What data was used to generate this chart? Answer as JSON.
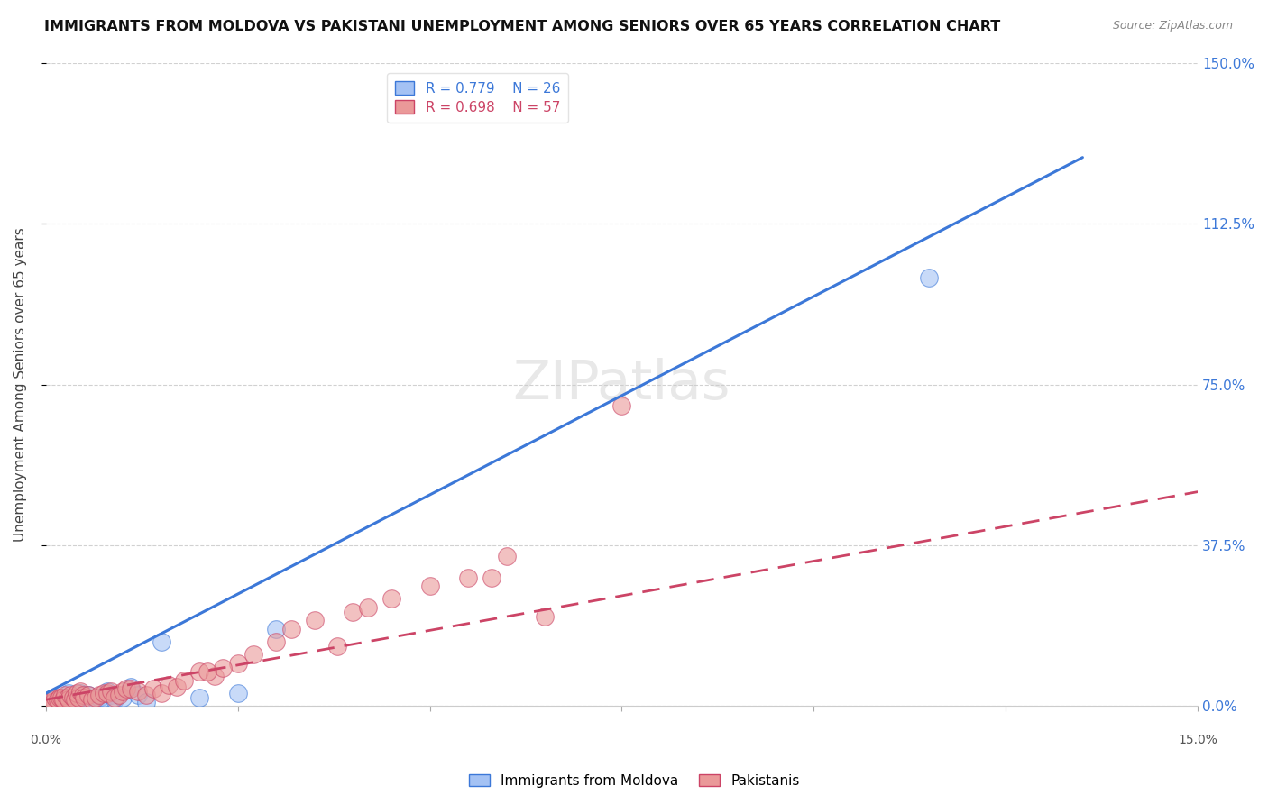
{
  "title": "IMMIGRANTS FROM MOLDOVA VS PAKISTANI UNEMPLOYMENT AMONG SENIORS OVER 65 YEARS CORRELATION CHART",
  "source": "Source: ZipAtlas.com",
  "ylabel": "Unemployment Among Seniors over 65 years",
  "ytick_vals": [
    0.0,
    37.5,
    75.0,
    112.5,
    150.0
  ],
  "xlim": [
    0.0,
    15.0
  ],
  "ylim": [
    0.0,
    150.0
  ],
  "legend_R1": "R = 0.779",
  "legend_N1": "N = 26",
  "legend_R2": "R = 0.698",
  "legend_N2": "N = 57",
  "color_moldova": "#a4c2f4",
  "color_pakistan": "#ea9999",
  "color_line_moldova": "#3c78d8",
  "color_line_pakistan": "#cc4466",
  "moldova_scatter_x": [
    0.1,
    0.15,
    0.2,
    0.25,
    0.3,
    0.35,
    0.4,
    0.45,
    0.5,
    0.55,
    0.6,
    0.65,
    0.7,
    0.75,
    0.8,
    0.85,
    0.9,
    1.0,
    1.1,
    1.2,
    1.3,
    1.5,
    2.0,
    2.5,
    3.0,
    11.5
  ],
  "moldova_scatter_y": [
    1.5,
    1.0,
    2.0,
    2.0,
    3.0,
    1.5,
    1.5,
    3.0,
    2.5,
    2.5,
    1.0,
    1.5,
    2.0,
    2.0,
    3.5,
    2.5,
    1.5,
    2.0,
    4.5,
    2.5,
    1.0,
    15.0,
    2.0,
    3.0,
    18.0,
    100.0
  ],
  "pakistan_scatter_x": [
    0.05,
    0.08,
    0.1,
    0.12,
    0.15,
    0.18,
    0.2,
    0.22,
    0.25,
    0.28,
    0.3,
    0.32,
    0.35,
    0.38,
    0.4,
    0.42,
    0.45,
    0.48,
    0.5,
    0.55,
    0.6,
    0.65,
    0.7,
    0.75,
    0.8,
    0.85,
    0.9,
    0.95,
    1.0,
    1.05,
    1.1,
    1.2,
    1.3,
    1.4,
    1.5,
    1.6,
    1.7,
    1.8,
    2.0,
    2.2,
    2.5,
    2.7,
    3.0,
    3.2,
    3.5,
    4.0,
    4.2,
    4.5,
    5.0,
    5.5,
    5.8,
    6.0,
    6.5,
    7.5,
    3.8,
    2.3,
    2.1
  ],
  "pakistan_scatter_y": [
    1.0,
    1.5,
    1.0,
    2.0,
    1.5,
    2.0,
    2.0,
    1.5,
    2.5,
    2.0,
    1.5,
    2.5,
    2.0,
    1.5,
    3.0,
    2.0,
    3.5,
    2.5,
    2.0,
    2.5,
    1.5,
    2.0,
    2.5,
    3.0,
    3.0,
    3.5,
    2.0,
    2.5,
    3.5,
    4.0,
    4.0,
    3.5,
    2.5,
    4.0,
    3.0,
    5.0,
    4.5,
    6.0,
    8.0,
    7.0,
    10.0,
    12.0,
    15.0,
    18.0,
    20.0,
    22.0,
    23.0,
    25.0,
    28.0,
    30.0,
    30.0,
    35.0,
    21.0,
    70.0,
    14.0,
    9.0,
    8.0
  ],
  "moldova_line_x": [
    0.0,
    13.5
  ],
  "moldova_line_y": [
    3.0,
    128.0
  ],
  "pakistan_line_x": [
    0.0,
    15.0
  ],
  "pakistan_line_y": [
    1.5,
    50.0
  ]
}
